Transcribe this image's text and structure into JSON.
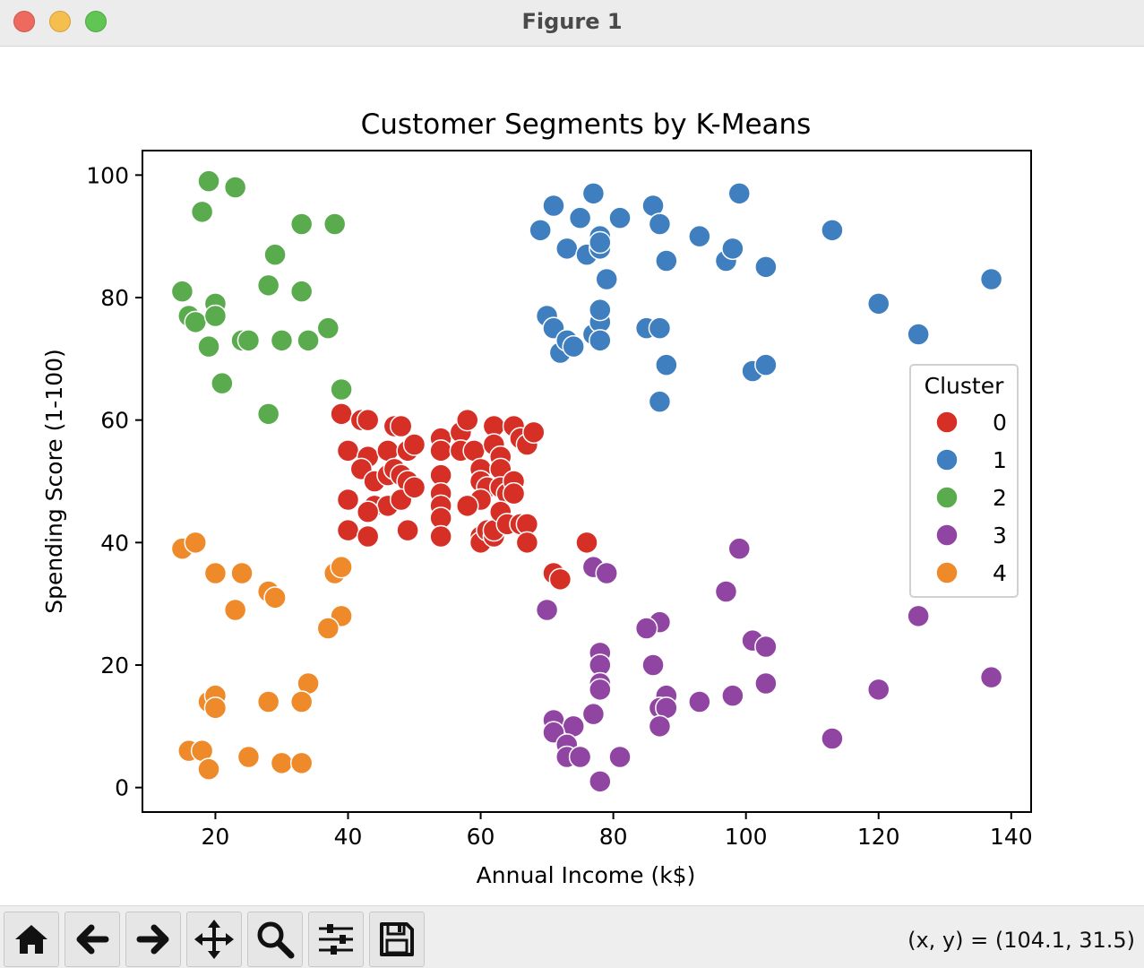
{
  "window": {
    "title": "Figure 1",
    "buttons": {
      "close_color": "#ec6a5e",
      "minimize_color": "#f4bf4f",
      "maximize_color": "#61c554"
    }
  },
  "toolbar": {
    "tools": [
      "home-icon",
      "back-arrow-icon",
      "forward-arrow-icon",
      "pan-move-icon",
      "zoom-magnifier-icon",
      "configure-subplots-icon",
      "save-icon"
    ],
    "coords_text": "(x, y) = (104.1, 31.5)"
  },
  "chart_data": {
    "type": "scatter",
    "title": "Customer Segments by K-Means",
    "xlabel": "Annual Income (k$)",
    "ylabel": "Spending Score (1-100)",
    "xlim": [
      9,
      143
    ],
    "ylim": [
      -4,
      104
    ],
    "xticks": [
      20,
      40,
      60,
      80,
      100,
      120,
      140
    ],
    "yticks": [
      0,
      20,
      40,
      60,
      80,
      100
    ],
    "grid": false,
    "legend": {
      "title": "Cluster",
      "location": "center-right"
    },
    "series": [
      {
        "name": "0",
        "color": "#d62f26",
        "points": [
          [
            39,
            61
          ],
          [
            42,
            60
          ],
          [
            43,
            60
          ],
          [
            47,
            59
          ],
          [
            48,
            59
          ],
          [
            40,
            55
          ],
          [
            43,
            54
          ],
          [
            46,
            55
          ],
          [
            49,
            55
          ],
          [
            50,
            56
          ],
          [
            42,
            52
          ],
          [
            44,
            50
          ],
          [
            46,
            51
          ],
          [
            47,
            52
          ],
          [
            48,
            51
          ],
          [
            49,
            50
          ],
          [
            40,
            47
          ],
          [
            44,
            46
          ],
          [
            46,
            46
          ],
          [
            48,
            47
          ],
          [
            50,
            49
          ],
          [
            43,
            45
          ],
          [
            40,
            42
          ],
          [
            43,
            41
          ],
          [
            49,
            42
          ],
          [
            54,
            57
          ],
          [
            54,
            55
          ],
          [
            54,
            51
          ],
          [
            54,
            48
          ],
          [
            54,
            46
          ],
          [
            54,
            44
          ],
          [
            54,
            41
          ],
          [
            57,
            58
          ],
          [
            58,
            60
          ],
          [
            57,
            55
          ],
          [
            59,
            55
          ],
          [
            60,
            52
          ],
          [
            60,
            50
          ],
          [
            61,
            49
          ],
          [
            60,
            47
          ],
          [
            58,
            46
          ],
          [
            60,
            41
          ],
          [
            60,
            40
          ],
          [
            61,
            42
          ],
          [
            62,
            41
          ],
          [
            62,
            42
          ],
          [
            62,
            59
          ],
          [
            62,
            56
          ],
          [
            63,
            54
          ],
          [
            63,
            52
          ],
          [
            63,
            49
          ],
          [
            64,
            48
          ],
          [
            63,
            45
          ],
          [
            64,
            43
          ],
          [
            65,
            59
          ],
          [
            65,
            50
          ],
          [
            65,
            48
          ],
          [
            66,
            57
          ],
          [
            67,
            56
          ],
          [
            68,
            58
          ],
          [
            66,
            43
          ],
          [
            67,
            43
          ],
          [
            67,
            40
          ],
          [
            76,
            40
          ],
          [
            71,
            35
          ],
          [
            72,
            34
          ]
        ]
      },
      {
        "name": "1",
        "color": "#3f7fbf",
        "points": [
          [
            69,
            91
          ],
          [
            71,
            95
          ],
          [
            73,
            88
          ],
          [
            75,
            93
          ],
          [
            76,
            87
          ],
          [
            77,
            97
          ],
          [
            78,
            90
          ],
          [
            78,
            88
          ],
          [
            78,
            89
          ],
          [
            79,
            83
          ],
          [
            81,
            93
          ],
          [
            86,
            95
          ],
          [
            87,
            92
          ],
          [
            88,
            86
          ],
          [
            93,
            90
          ],
          [
            97,
            86
          ],
          [
            98,
            88
          ],
          [
            99,
            97
          ],
          [
            103,
            85
          ],
          [
            113,
            91
          ],
          [
            120,
            79
          ],
          [
            126,
            74
          ],
          [
            137,
            83
          ],
          [
            70,
            77
          ],
          [
            71,
            75
          ],
          [
            72,
            71
          ],
          [
            73,
            73
          ],
          [
            74,
            72
          ],
          [
            77,
            74
          ],
          [
            78,
            76
          ],
          [
            78,
            78
          ],
          [
            78,
            73
          ],
          [
            85,
            75
          ],
          [
            87,
            75
          ],
          [
            88,
            69
          ],
          [
            87,
            63
          ],
          [
            101,
            68
          ],
          [
            103,
            69
          ]
        ]
      },
      {
        "name": "2",
        "color": "#5aab4e",
        "points": [
          [
            19,
            99
          ],
          [
            23,
            98
          ],
          [
            18,
            94
          ],
          [
            33,
            92
          ],
          [
            38,
            92
          ],
          [
            29,
            87
          ],
          [
            15,
            81
          ],
          [
            28,
            82
          ],
          [
            33,
            81
          ],
          [
            20,
            79
          ],
          [
            16,
            77
          ],
          [
            17,
            76
          ],
          [
            20,
            77
          ],
          [
            37,
            75
          ],
          [
            24,
            73
          ],
          [
            25,
            73
          ],
          [
            30,
            73
          ],
          [
            34,
            73
          ],
          [
            19,
            72
          ],
          [
            21,
            66
          ],
          [
            39,
            65
          ],
          [
            28,
            61
          ]
        ]
      },
      {
        "name": "3",
        "color": "#9145a3",
        "points": [
          [
            99,
            39
          ],
          [
            77,
            36
          ],
          [
            79,
            35
          ],
          [
            97,
            32
          ],
          [
            70,
            29
          ],
          [
            126,
            28
          ],
          [
            87,
            27
          ],
          [
            85,
            26
          ],
          [
            101,
            24
          ],
          [
            103,
            23
          ],
          [
            78,
            22
          ],
          [
            86,
            20
          ],
          [
            78,
            20
          ],
          [
            103,
            17
          ],
          [
            78,
            17
          ],
          [
            78,
            16
          ],
          [
            120,
            16
          ],
          [
            137,
            18
          ],
          [
            88,
            15
          ],
          [
            98,
            15
          ],
          [
            93,
            14
          ],
          [
            87,
            13
          ],
          [
            88,
            13
          ],
          [
            77,
            12
          ],
          [
            71,
            11
          ],
          [
            74,
            10
          ],
          [
            87,
            10
          ],
          [
            71,
            9
          ],
          [
            73,
            7
          ],
          [
            73,
            5
          ],
          [
            75,
            5
          ],
          [
            81,
            5
          ],
          [
            113,
            8
          ],
          [
            78,
            1
          ]
        ]
      },
      {
        "name": "4",
        "color": "#ef8a2b",
        "points": [
          [
            15,
            39
          ],
          [
            17,
            40
          ],
          [
            20,
            35
          ],
          [
            24,
            35
          ],
          [
            38,
            35
          ],
          [
            39,
            36
          ],
          [
            28,
            32
          ],
          [
            29,
            31
          ],
          [
            23,
            29
          ],
          [
            39,
            28
          ],
          [
            37,
            26
          ],
          [
            34,
            17
          ],
          [
            19,
            14
          ],
          [
            20,
            15
          ],
          [
            20,
            13
          ],
          [
            28,
            14
          ],
          [
            33,
            14
          ],
          [
            16,
            6
          ],
          [
            18,
            6
          ],
          [
            19,
            3
          ],
          [
            25,
            5
          ],
          [
            30,
            4
          ],
          [
            33,
            4
          ]
        ]
      }
    ]
  }
}
